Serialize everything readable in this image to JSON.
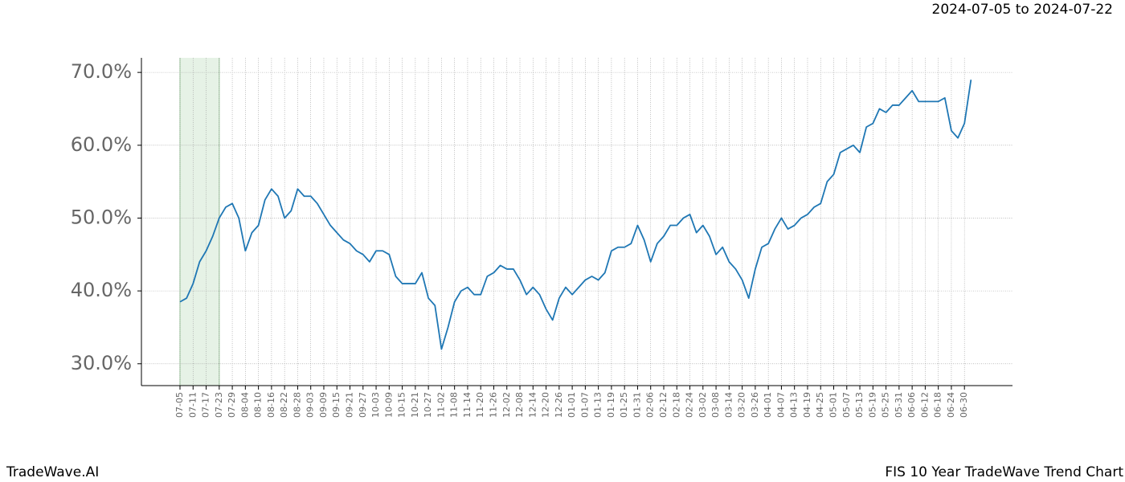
{
  "header": {
    "range": "2024-07-05 to 2024-07-22"
  },
  "footer": {
    "left": "TradeWave.AI",
    "right": "FIS 10 Year TradeWave Trend Chart"
  },
  "chart_data": {
    "type": "line",
    "categories": [
      "07-05",
      null,
      "07-11",
      null,
      "07-17",
      null,
      "07-23",
      null,
      "07-29",
      null,
      "08-04",
      null,
      "08-10",
      null,
      "08-16",
      null,
      "08-22",
      null,
      "08-28",
      null,
      "09-03",
      null,
      "09-09",
      null,
      "09-15",
      null,
      "09-21",
      null,
      "09-27",
      null,
      "10-03",
      null,
      "10-09",
      null,
      "10-15",
      null,
      "10-21",
      null,
      "10-27",
      null,
      "11-02",
      null,
      "11-08",
      null,
      "11-14",
      null,
      "11-20",
      null,
      "11-26",
      null,
      "12-02",
      null,
      "12-08",
      null,
      "12-14",
      null,
      "12-20",
      null,
      "12-26",
      null,
      "01-01",
      null,
      "01-07",
      null,
      "01-13",
      null,
      "01-19",
      null,
      "01-25",
      null,
      "01-31",
      null,
      "02-06",
      null,
      "02-12",
      null,
      "02-18",
      null,
      "02-24",
      null,
      "03-02",
      null,
      "03-08",
      null,
      "03-14",
      null,
      "03-20",
      null,
      "03-26",
      null,
      "04-01",
      null,
      "04-07",
      null,
      "04-13",
      null,
      "04-19",
      null,
      "04-25",
      null,
      "05-01",
      null,
      "05-07",
      null,
      "05-13",
      null,
      "05-19",
      null,
      "05-25",
      null,
      "05-31",
      null,
      "06-06",
      null,
      "06-12",
      null,
      "06-18",
      null,
      "06-24",
      null,
      "06-30",
      null
    ],
    "series": [
      {
        "color": "#1f77b4",
        "values": [
          38.5,
          39,
          41,
          44,
          45.5,
          47.5,
          50,
          51.5,
          52,
          50,
          45.5,
          48,
          49,
          52.5,
          54,
          53,
          50,
          51,
          54,
          53,
          53,
          52,
          50.5,
          49,
          48,
          47,
          46.5,
          45.5,
          45,
          44,
          45.5,
          45.5,
          45,
          42,
          41,
          41,
          41,
          42.5,
          39,
          38,
          32,
          35,
          38.5,
          40,
          40.5,
          39.5,
          39.5,
          42,
          42.5,
          43.5,
          43,
          43,
          41.5,
          39.5,
          40.5,
          39.5,
          37.5,
          36,
          39,
          40.5,
          39.5,
          40.5,
          41.5,
          42,
          41.5,
          42.5,
          45.5,
          46,
          46,
          46.5,
          49,
          47,
          44,
          46.5,
          47.5,
          49,
          49,
          50,
          50.5,
          48,
          49,
          47.5,
          45,
          46,
          44,
          43,
          41.5,
          39,
          43,
          46,
          46.5,
          48.5,
          50,
          48.5,
          49,
          50,
          50.5,
          51.5,
          52,
          55,
          56,
          59,
          59.5,
          60,
          59,
          62.5,
          63,
          65,
          64.5,
          65.5,
          65.5,
          66.5,
          67.5,
          66,
          66,
          66,
          66,
          66.5,
          62,
          61,
          63,
          69
        ]
      }
    ],
    "highlight": [
      "07-05",
      "07-23"
    ],
    "ylim": [
      27,
      72
    ],
    "yticks": [
      {
        "value": 30,
        "label": "30.0%"
      },
      {
        "value": 40,
        "label": "40.0%"
      },
      {
        "value": 50,
        "label": "50.0%"
      },
      {
        "value": 60,
        "label": "60.0%"
      },
      {
        "value": 70,
        "label": "70.0%"
      }
    ],
    "grid": true
  }
}
